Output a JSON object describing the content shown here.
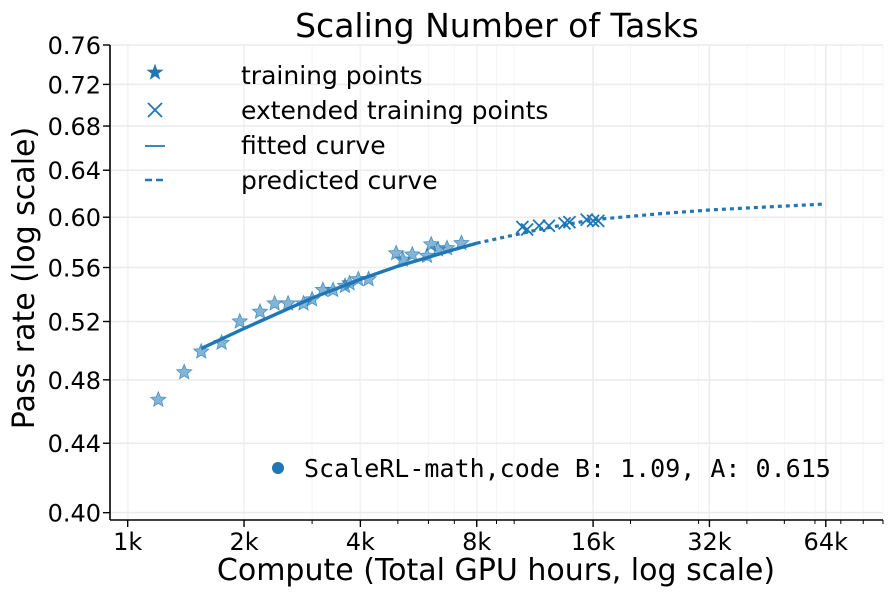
{
  "chart_data": {
    "type": "scatter",
    "title": "Scaling Number of Tasks",
    "xlabel": "Compute (Total GPU hours, log scale)",
    "ylabel": "Pass rate (log scale)",
    "x_scale": "log",
    "y_scale": "log",
    "xlim": [
      900,
      90000
    ],
    "ylim": [
      0.396,
      0.76
    ],
    "grid": true,
    "x_ticks": [
      {
        "value": 1000,
        "label": "1k"
      },
      {
        "value": 2000,
        "label": "2k"
      },
      {
        "value": 4000,
        "label": "4k"
      },
      {
        "value": 8000,
        "label": "8k"
      },
      {
        "value": 16000,
        "label": "16k"
      },
      {
        "value": 32000,
        "label": "32k"
      },
      {
        "value": 64000,
        "label": "64k"
      }
    ],
    "y_ticks": [
      {
        "value": 0.4,
        "label": "0.40"
      },
      {
        "value": 0.44,
        "label": "0.44"
      },
      {
        "value": 0.48,
        "label": "0.48"
      },
      {
        "value": 0.52,
        "label": "0.52"
      },
      {
        "value": 0.56,
        "label": "0.56"
      },
      {
        "value": 0.6,
        "label": "0.60"
      },
      {
        "value": 0.64,
        "label": "0.64"
      },
      {
        "value": 0.68,
        "label": "0.68"
      },
      {
        "value": 0.72,
        "label": "0.72"
      },
      {
        "value": 0.76,
        "label": "0.76"
      }
    ],
    "color": "#1f77b4",
    "legend": {
      "placement": "top-left",
      "entries": [
        {
          "label": "training points",
          "marker": "star"
        },
        {
          "label": "extended training points",
          "marker": "x"
        },
        {
          "label": "fitted curve",
          "marker": "solid-line"
        },
        {
          "label": "predicted curve",
          "marker": "dashed-line"
        }
      ]
    },
    "annotation": {
      "placement": "bottom-right",
      "marker": "dot",
      "text": "ScaleRL-math,code B: 1.09, A: 0.615"
    },
    "series": [
      {
        "marker": "star",
        "points": [
          {
            "x": 1200,
            "y": 0.467
          },
          {
            "x": 1400,
            "y": 0.485
          },
          {
            "x": 1550,
            "y": 0.499
          },
          {
            "x": 1750,
            "y": 0.505
          },
          {
            "x": 1950,
            "y": 0.52
          },
          {
            "x": 2200,
            "y": 0.527
          },
          {
            "x": 2400,
            "y": 0.533
          },
          {
            "x": 2600,
            "y": 0.533
          },
          {
            "x": 2850,
            "y": 0.533
          },
          {
            "x": 3000,
            "y": 0.536
          },
          {
            "x": 3200,
            "y": 0.543
          },
          {
            "x": 3400,
            "y": 0.543
          },
          {
            "x": 3650,
            "y": 0.546
          },
          {
            "x": 3750,
            "y": 0.548
          },
          {
            "x": 3950,
            "y": 0.551
          },
          {
            "x": 4200,
            "y": 0.551
          },
          {
            "x": 4950,
            "y": 0.571
          },
          {
            "x": 5150,
            "y": 0.566
          },
          {
            "x": 5450,
            "y": 0.57
          },
          {
            "x": 5950,
            "y": 0.569
          },
          {
            "x": 6100,
            "y": 0.578
          },
          {
            "x": 6350,
            "y": 0.574
          },
          {
            "x": 6700,
            "y": 0.575
          },
          {
            "x": 7300,
            "y": 0.579
          }
        ]
      },
      {
        "marker": "x",
        "points": [
          {
            "x": 10500,
            "y": 0.592
          },
          {
            "x": 10800,
            "y": 0.59
          },
          {
            "x": 11600,
            "y": 0.593
          },
          {
            "x": 12300,
            "y": 0.593
          },
          {
            "x": 13500,
            "y": 0.595
          },
          {
            "x": 13900,
            "y": 0.596
          },
          {
            "x": 15400,
            "y": 0.598
          },
          {
            "x": 16000,
            "y": 0.597
          },
          {
            "x": 16500,
            "y": 0.597
          }
        ]
      },
      {
        "marker": "solid-line",
        "x_range": [
          1550,
          8000
        ],
        "points": [
          {
            "x": 1550,
            "y": 0.501
          },
          {
            "x": 2000,
            "y": 0.515
          },
          {
            "x": 3000,
            "y": 0.537
          },
          {
            "x": 4000,
            "y": 0.551
          },
          {
            "x": 5000,
            "y": 0.561
          },
          {
            "x": 6000,
            "y": 0.568
          },
          {
            "x": 7000,
            "y": 0.574
          },
          {
            "x": 8000,
            "y": 0.579
          }
        ]
      },
      {
        "marker": "dashed-line",
        "x_range": [
          8000,
          64000
        ],
        "points": [
          {
            "x": 8000,
            "y": 0.579
          },
          {
            "x": 12000,
            "y": 0.591
          },
          {
            "x": 16000,
            "y": 0.598
          },
          {
            "x": 24000,
            "y": 0.603
          },
          {
            "x": 32000,
            "y": 0.606
          },
          {
            "x": 48000,
            "y": 0.609
          },
          {
            "x": 64000,
            "y": 0.611
          }
        ]
      }
    ]
  }
}
